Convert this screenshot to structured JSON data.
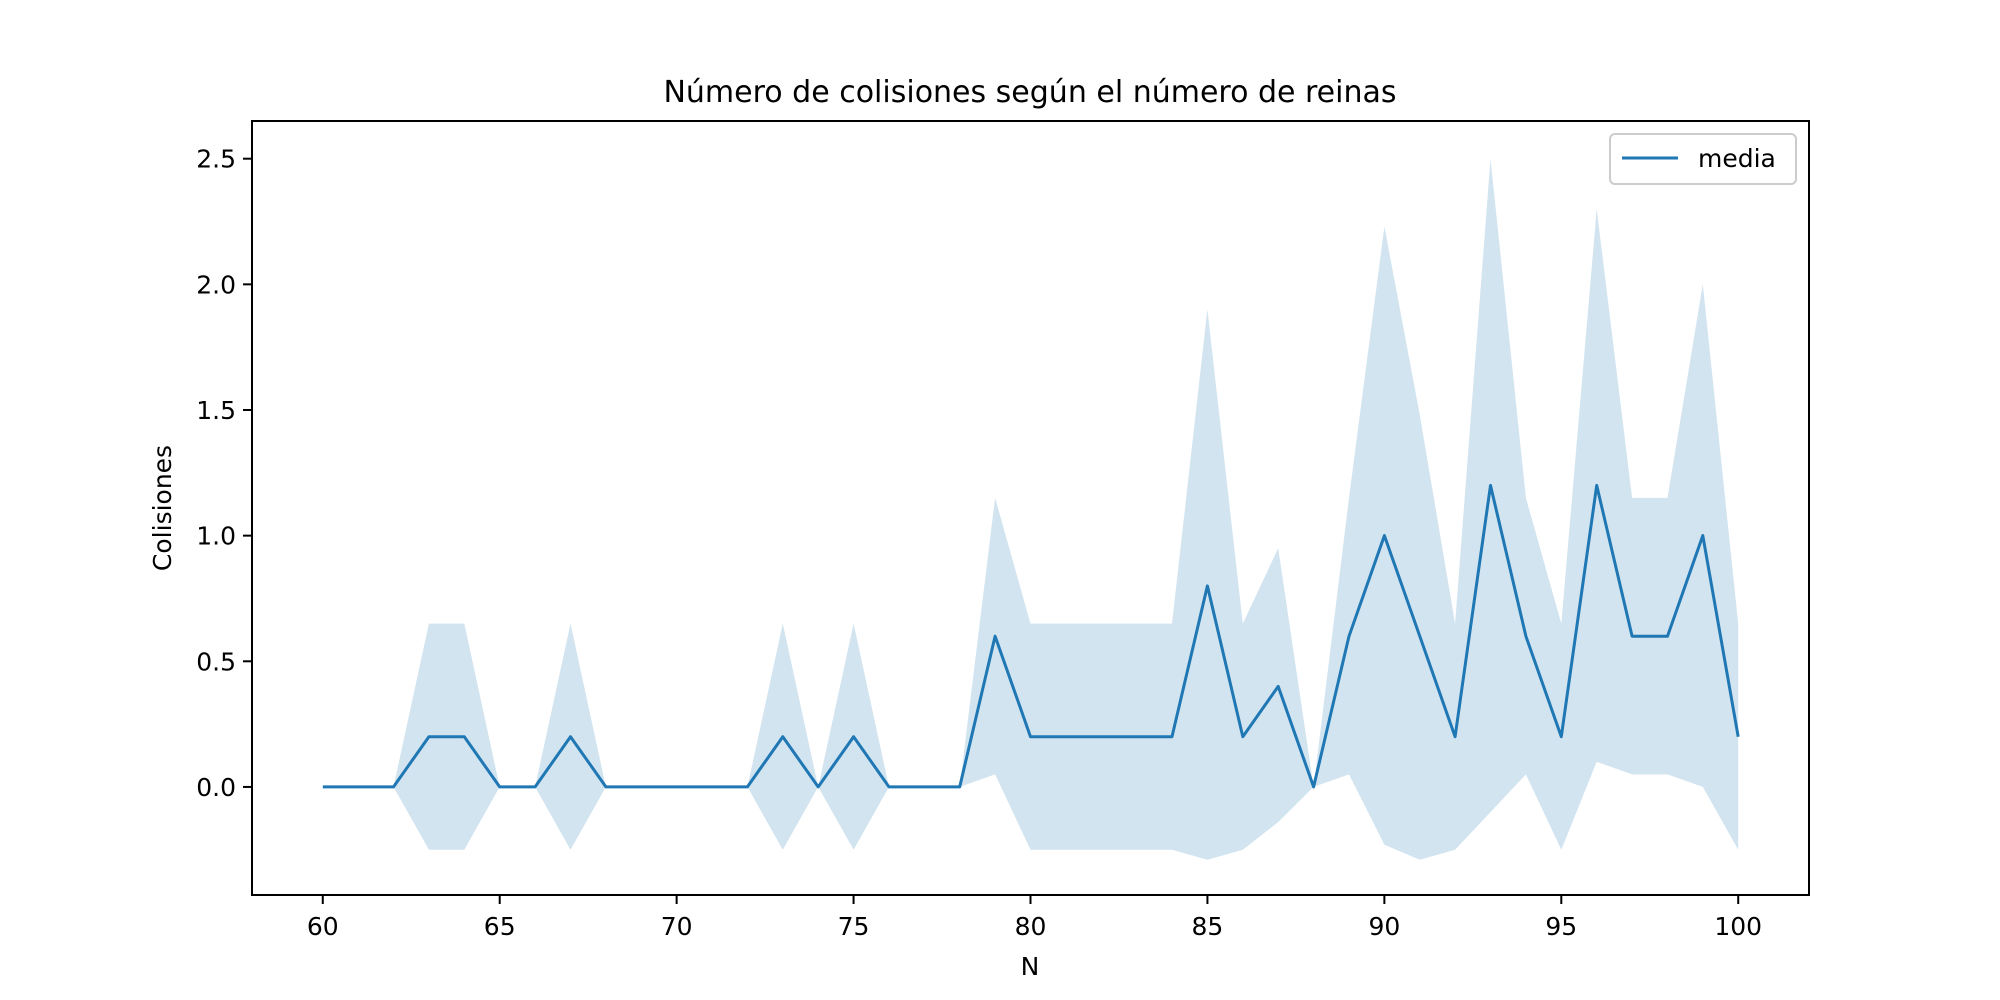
{
  "chart_data": {
    "type": "line",
    "title": "Número de colisiones según el número de reinas",
    "xlabel": "N",
    "ylabel": "Colisiones",
    "xlim": [
      58,
      102
    ],
    "ylim": [
      -0.43,
      2.65
    ],
    "xticks": [
      60,
      65,
      70,
      75,
      80,
      85,
      90,
      95,
      100
    ],
    "yticks": [
      0.0,
      0.5,
      1.0,
      1.5,
      2.0,
      2.5
    ],
    "xtick_labels": [
      "60",
      "65",
      "70",
      "75",
      "80",
      "85",
      "90",
      "95",
      "100"
    ],
    "ytick_labels": [
      "0.0",
      "0.5",
      "1.0",
      "1.5",
      "2.0",
      "2.5"
    ],
    "grid": false,
    "legend": {
      "position": "top-right",
      "entries": [
        "media"
      ]
    },
    "colors": {
      "line": "#1f77b4",
      "band": "#1f77b4",
      "band_opacity": 0.2
    },
    "x": [
      60,
      61,
      62,
      63,
      64,
      65,
      66,
      67,
      68,
      69,
      70,
      71,
      72,
      73,
      74,
      75,
      76,
      77,
      78,
      79,
      80,
      81,
      82,
      83,
      84,
      85,
      86,
      87,
      88,
      89,
      90,
      91,
      92,
      93,
      94,
      95,
      96,
      97,
      98,
      99,
      100
    ],
    "series": [
      {
        "name": "media",
        "values": [
          0,
          0,
          0,
          0.2,
          0.2,
          0,
          0,
          0.2,
          0,
          0,
          0,
          0,
          0,
          0.2,
          0,
          0.2,
          0,
          0,
          0,
          0.6,
          0.2,
          0.2,
          0.2,
          0.2,
          0.2,
          0.8,
          0.2,
          0.4,
          0,
          0.6,
          1.0,
          0.6,
          0.2,
          1.2,
          0.6,
          0.2,
          1.2,
          0.6,
          0.6,
          1.0,
          0.2
        ],
        "upper": [
          0,
          0,
          0,
          0.65,
          0.65,
          0,
          0,
          0.65,
          0,
          0,
          0,
          0,
          0,
          0.65,
          0,
          0.65,
          0,
          0,
          0,
          1.15,
          0.65,
          0.65,
          0.65,
          0.65,
          0.65,
          1.9,
          0.65,
          0.95,
          0,
          1.15,
          2.23,
          1.48,
          0.65,
          2.5,
          1.15,
          0.65,
          2.3,
          1.15,
          1.15,
          2.0,
          0.65
        ],
        "lower": [
          0,
          0,
          0,
          -0.25,
          -0.25,
          0,
          0,
          -0.25,
          0,
          0,
          0,
          0,
          0,
          -0.25,
          0,
          -0.25,
          0,
          0,
          0,
          0.05,
          -0.25,
          -0.25,
          -0.25,
          -0.25,
          -0.25,
          -0.29,
          -0.25,
          -0.14,
          0,
          0.05,
          -0.23,
          -0.29,
          -0.25,
          -0.1,
          0.05,
          -0.25,
          0.1,
          0.05,
          0.05,
          0,
          -0.25
        ]
      }
    ]
  }
}
